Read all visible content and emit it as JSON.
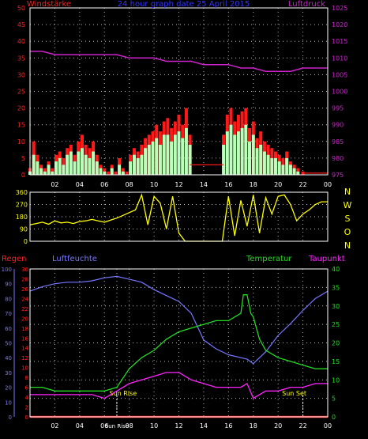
{
  "colors": {
    "background": "#000000",
    "frame": "#ffffff",
    "grid": "#bbbbbb",
    "wind_gust": "#ff1a1a",
    "wind_avg": "#b8ffb8",
    "pressure": "#cc22cc",
    "direction": "#ffff00",
    "rain": "#ff2020",
    "humidity": "#7777ff",
    "temperature": "#22dd22",
    "dewpoint": "#ff22ff",
    "marker": "#ffffff"
  },
  "panel1": {
    "title": "24 hour graph date 25 April 2015",
    "left_label": "Windstärke",
    "right_label": "Luftdruck",
    "left_ticks": [
      "0",
      "5",
      "10",
      "15",
      "20",
      "25",
      "30",
      "35",
      "40",
      "45",
      "50"
    ],
    "right_ticks": [
      "975",
      "980",
      "985",
      "990",
      "995",
      "1000",
      "1005",
      "1010",
      "1015",
      "1020",
      "1025"
    ],
    "x_ticks": [
      "02",
      "04",
      "06",
      "08",
      "10",
      "12",
      "14",
      "16",
      "18",
      "20",
      "22",
      "00"
    ]
  },
  "panel2": {
    "left_ticks": [
      "0",
      "90",
      "180",
      "270",
      "360"
    ],
    "right_letters": [
      "N",
      "W",
      "S",
      "O",
      "N"
    ]
  },
  "panel3": {
    "label_rain": "Regen",
    "label_humidity": "Luftfeuchte",
    "label_temperature": "Temperatur",
    "label_dewpoint": "Taupunkt",
    "humidity_ticks": [
      "0",
      "10",
      "20",
      "30",
      "40",
      "50",
      "60",
      "70",
      "80",
      "90",
      "100"
    ],
    "rain_ticks": [
      "0",
      "2",
      "4",
      "6",
      "8",
      "10",
      "12",
      "14",
      "16",
      "18",
      "20",
      "22",
      "24",
      "26",
      "28",
      "30"
    ],
    "temp_ticks": [
      "0",
      "5",
      "10",
      "15",
      "20",
      "25",
      "30",
      "35",
      "40"
    ],
    "x_ticks": [
      "02",
      "04",
      "06",
      "Sun Rise",
      "08",
      "10",
      "12",
      "14",
      "16",
      "18",
      "20",
      "22",
      "00"
    ],
    "sun_rise": "Sun Rise",
    "sun_set": "Sun Set"
  },
  "chart_data": [
    {
      "type": "line",
      "x_unit": "hours",
      "xlim": [
        0,
        24
      ],
      "ylim_left": [
        0,
        50
      ],
      "ylim_right": [
        975,
        1025
      ],
      "series": [
        {
          "name": "Windstärke",
          "axis": "left",
          "style": "gust",
          "x": [
            0,
            0.3,
            0.6,
            0.9,
            1.2,
            1.5,
            1.8,
            2.1,
            2.4,
            2.7,
            3,
            3.3,
            3.6,
            3.9,
            4.2,
            4.5,
            4.8,
            5.1,
            5.4,
            5.7,
            6,
            6.3,
            6.6,
            6.9,
            7.2,
            7.5,
            7.8,
            8.1,
            8.4,
            8.7,
            9,
            9.3,
            9.6,
            9.9,
            10.2,
            10.5,
            10.8,
            11.1,
            11.4,
            11.7,
            12,
            12.3,
            12.6,
            12.9,
            15.6,
            15.9,
            16.2,
            16.5,
            16.8,
            17.1,
            17.4,
            17.7,
            18,
            18.3,
            18.6,
            18.9,
            19.2,
            19.5,
            19.8,
            20.1,
            20.4,
            20.7,
            21,
            21.3,
            21.6,
            22
          ],
          "values": [
            2,
            10,
            6,
            3,
            2,
            4,
            2,
            6,
            7,
            5,
            8,
            9,
            6,
            10,
            12,
            9,
            8,
            10,
            6,
            3,
            2,
            1,
            3,
            1,
            5,
            2,
            1,
            6,
            8,
            7,
            9,
            11,
            12,
            13,
            15,
            13,
            16,
            17,
            14,
            16,
            18,
            15,
            20,
            12,
            12,
            18,
            20,
            16,
            18,
            19,
            20,
            14,
            16,
            11,
            13,
            10,
            9,
            8,
            7,
            6,
            5,
            7,
            4,
            3,
            2,
            1
          ]
        },
        {
          "name": "Windstärke (Mittel)",
          "axis": "left",
          "style": "avg",
          "x": [
            0,
            0.3,
            0.6,
            0.9,
            1.2,
            1.5,
            1.8,
            2.1,
            2.4,
            2.7,
            3,
            3.3,
            3.6,
            3.9,
            4.2,
            4.5,
            4.8,
            5.1,
            5.4,
            5.7,
            6,
            6.3,
            6.6,
            6.9,
            7.2,
            7.5,
            7.8,
            8.1,
            8.4,
            8.7,
            9,
            9.3,
            9.6,
            9.9,
            10.2,
            10.5,
            10.8,
            11.1,
            11.4,
            11.7,
            12,
            12.3,
            12.6,
            12.9,
            15.6,
            15.9,
            16.2,
            16.5,
            16.8,
            17.1,
            17.4,
            17.7,
            18,
            18.3,
            18.6,
            18.9,
            19.2,
            19.5,
            19.8,
            20.1,
            20.4,
            20.7,
            21,
            21.3,
            21.6,
            22
          ],
          "values": [
            1,
            6,
            4,
            2,
            1,
            3,
            1,
            4,
            5,
            3,
            6,
            7,
            4,
            7,
            8,
            6,
            5,
            7,
            4,
            2,
            1,
            0,
            2,
            0,
            3,
            1,
            0,
            4,
            6,
            5,
            6,
            8,
            9,
            10,
            11,
            9,
            12,
            12,
            10,
            12,
            13,
            11,
            14,
            9,
            9,
            13,
            15,
            12,
            13,
            14,
            15,
            10,
            12,
            8,
            9,
            7,
            6,
            5,
            5,
            4,
            3,
            5,
            3,
            2,
            1,
            0
          ]
        },
        {
          "name": "Luftdruck",
          "axis": "right",
          "x": [
            0,
            1,
            2,
            3,
            4,
            5,
            6,
            7,
            8,
            9,
            10,
            11,
            12,
            13,
            14,
            15,
            16,
            17,
            18,
            19,
            20,
            21,
            22,
            23,
            24
          ],
          "values": [
            1012,
            1012,
            1011,
            1011,
            1011,
            1011,
            1011,
            1011,
            1010,
            1010,
            1010,
            1009,
            1009,
            1009,
            1008,
            1008,
            1008,
            1007,
            1007,
            1006,
            1006,
            1006,
            1007,
            1007,
            1007
          ]
        }
      ]
    },
    {
      "type": "scatter",
      "x_unit": "hours",
      "xlim": [
        0,
        24
      ],
      "ylim": [
        0,
        360
      ],
      "series": [
        {
          "name": "Windrichtung",
          "x": [
            0,
            0.5,
            1,
            1.5,
            2,
            2.5,
            3,
            3.5,
            4,
            4.5,
            5,
            5.5,
            6,
            6.5,
            7,
            7.5,
            8,
            8.5,
            9,
            9.5,
            10,
            10.5,
            11,
            11.5,
            12,
            12.5,
            13,
            13.5,
            14,
            14.5,
            15,
            15.5,
            16,
            16.5,
            17,
            17.5,
            18,
            18.5,
            19,
            19.5,
            20,
            20.5,
            21,
            21.5,
            22,
            22.5,
            23,
            23.5,
            24
          ],
          "values": [
            120,
            130,
            140,
            125,
            150,
            135,
            140,
            130,
            145,
            150,
            160,
            150,
            140,
            155,
            170,
            190,
            210,
            230,
            340,
            120,
            330,
            280,
            90,
            330,
            60,
            0,
            0,
            0,
            0,
            0,
            0,
            0,
            330,
            40,
            300,
            110,
            340,
            60,
            320,
            200,
            330,
            340,
            270,
            150,
            200,
            230,
            270,
            290,
            290
          ]
        }
      ]
    },
    {
      "type": "line",
      "x_unit": "hours",
      "xlim": [
        0,
        24
      ],
      "ylim_humidity": [
        0,
        100
      ],
      "ylim_rain": [
        0,
        30
      ],
      "ylim_temperature": [
        0,
        40
      ],
      "series": [
        {
          "name": "Regen",
          "axis": "rain",
          "x": [
            0,
            24
          ],
          "values": [
            0,
            0
          ]
        },
        {
          "name": "Luftfeuchte",
          "axis": "humidity",
          "x": [
            0,
            1,
            2,
            3,
            4,
            5,
            6,
            7,
            8,
            9,
            10,
            11,
            12,
            13,
            14,
            15,
            16,
            17,
            17.5,
            18,
            19,
            20,
            21,
            22,
            23,
            24
          ],
          "values": [
            85,
            88,
            90,
            91,
            91,
            92,
            94,
            95,
            93,
            91,
            86,
            82,
            78,
            70,
            52,
            46,
            42,
            40,
            39,
            36,
            44,
            55,
            63,
            72,
            80,
            85
          ]
        },
        {
          "name": "Temperatur",
          "axis": "temperature",
          "x": [
            0,
            1,
            2,
            3,
            4,
            5,
            6,
            7,
            8,
            9,
            10,
            11,
            12,
            13,
            14,
            15,
            16,
            17,
            17.2,
            17.5,
            17.8,
            18,
            18.5,
            19,
            20,
            21,
            22,
            23,
            24
          ],
          "values": [
            8,
            8,
            7,
            7,
            7,
            7,
            7,
            8,
            13,
            16,
            18,
            21,
            23,
            24,
            25,
            26,
            26,
            28,
            33,
            33,
            28,
            27,
            21,
            18,
            16,
            15,
            14,
            13,
            13
          ]
        },
        {
          "name": "Taupunkt",
          "axis": "temperature",
          "x": [
            0,
            1,
            2,
            3,
            4,
            5,
            6,
            7,
            8,
            9,
            10,
            11,
            12,
            13,
            14,
            15,
            16,
            17,
            17.5,
            18,
            18.5,
            19,
            20,
            21,
            22,
            23,
            24
          ],
          "values": [
            6,
            6,
            6,
            6,
            6,
            6,
            5,
            7,
            9,
            10,
            11,
            12,
            12,
            10,
            9,
            8,
            8,
            8,
            9,
            5,
            6,
            7,
            7,
            8,
            8,
            9,
            9
          ]
        }
      ]
    }
  ]
}
